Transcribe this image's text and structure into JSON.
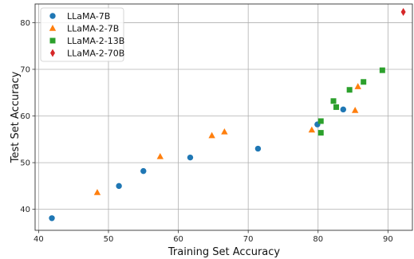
{
  "chart_data": {
    "type": "scatter",
    "title": "",
    "xlabel": "Training Set Accuracy",
    "ylabel": "Test Set Accuracy",
    "xlim": [
      39.5,
      93.5
    ],
    "ylim": [
      35.5,
      84.0
    ],
    "xticks": [
      40,
      50,
      60,
      70,
      80,
      90
    ],
    "yticks": [
      40,
      50,
      60,
      70,
      80
    ],
    "grid": true,
    "legend_position": "top-left",
    "series": [
      {
        "name": "LLaMA-7B",
        "marker": "circle",
        "color": "#1f77b4",
        "points": [
          [
            41.9,
            38.1
          ],
          [
            51.5,
            45.0
          ],
          [
            55.0,
            48.2
          ],
          [
            61.7,
            51.1
          ],
          [
            71.4,
            53.0
          ],
          [
            79.9,
            58.2
          ],
          [
            83.6,
            61.4
          ]
        ]
      },
      {
        "name": "LLaMA-2-7B",
        "marker": "triangle",
        "color": "#ff7f0e",
        "points": [
          [
            48.4,
            43.6
          ],
          [
            57.4,
            51.3
          ],
          [
            64.8,
            55.8
          ],
          [
            66.6,
            56.6
          ],
          [
            79.1,
            57.0
          ],
          [
            85.3,
            61.2
          ],
          [
            85.7,
            66.3
          ]
        ]
      },
      {
        "name": "LLaMA-2-13B",
        "marker": "square",
        "color": "#2ca02c",
        "points": [
          [
            80.4,
            58.9
          ],
          [
            80.4,
            56.4
          ],
          [
            82.2,
            63.2
          ],
          [
            82.6,
            61.9
          ],
          [
            84.5,
            65.6
          ],
          [
            86.5,
            67.3
          ],
          [
            89.2,
            69.8
          ]
        ]
      },
      {
        "name": "LLaMA-2-70B",
        "marker": "diamond",
        "color": "#d62728",
        "points": [
          [
            92.2,
            82.3
          ]
        ]
      }
    ]
  }
}
